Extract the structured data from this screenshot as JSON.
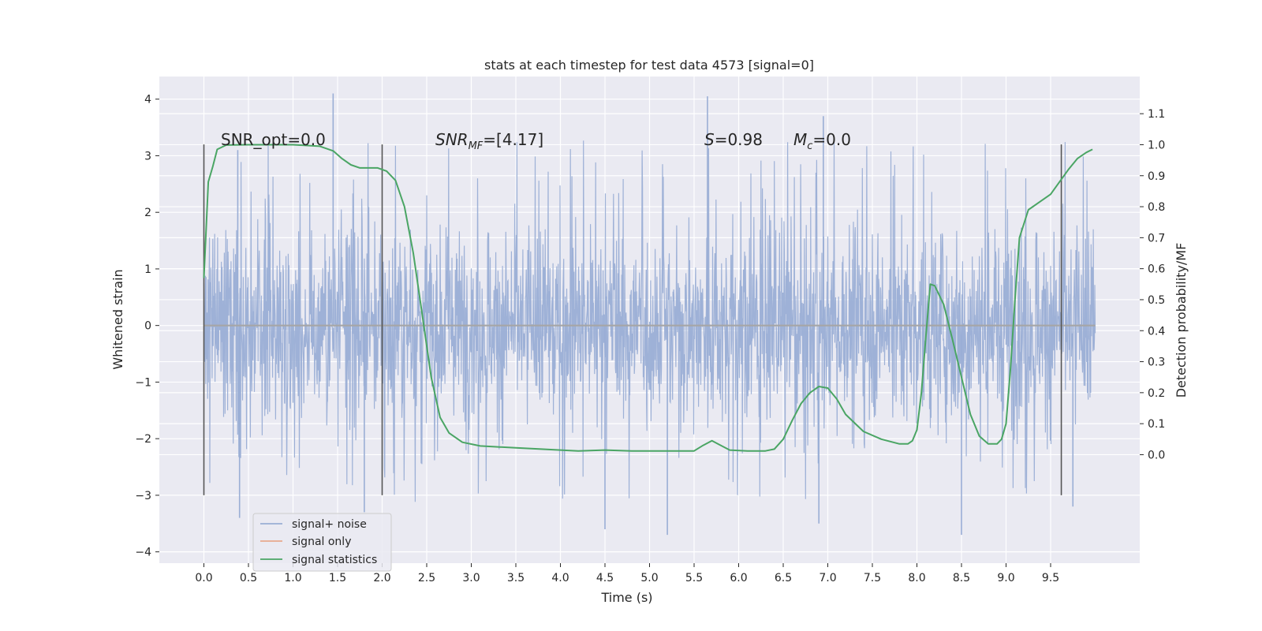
{
  "chart_data": {
    "type": "line",
    "title": "stats at each timestep for test data 4573 [signal=0]",
    "xlabel": "Time (s)",
    "ylabel": "Whitened strain",
    "ylabel_right": "Detection probability/MF",
    "xlim": [
      -0.5,
      10.5
    ],
    "ylim": [
      -4.2,
      4.4
    ],
    "ylim_right": [
      -0.35,
      1.22
    ],
    "x_ticks": [
      "0.0",
      "0.5",
      "1.0",
      "1.5",
      "2.0",
      "2.5",
      "3.0",
      "3.5",
      "4.0",
      "4.5",
      "5.0",
      "5.5",
      "6.0",
      "6.5",
      "7.0",
      "7.5",
      "8.0",
      "8.5",
      "9.0",
      "9.5"
    ],
    "y_ticks": [
      "4",
      "3",
      "2",
      "1",
      "0",
      "−1",
      "−2",
      "−3",
      "−4"
    ],
    "y_right_ticks": [
      "1.1",
      "1.0",
      "0.9",
      "0.8",
      "0.7",
      "0.6",
      "0.5",
      "0.4",
      "0.3",
      "0.2",
      "0.1",
      "0.0"
    ],
    "grid": true,
    "legend_position": "lower-left",
    "annotations": [
      {
        "text": "SNR_opt=0.0"
      },
      {
        "text_italic": "SNR",
        "sub": "MF",
        "text_rest": "=[4.17]"
      },
      {
        "text_italic": "S",
        "text_rest": "=0.98"
      },
      {
        "text_italic": "M",
        "sub": "c",
        "text_rest": "=0.0"
      }
    ],
    "vlines": [
      0.0,
      2.0,
      9.62
    ],
    "vline_range": [
      -3.0,
      3.2
    ],
    "series": [
      {
        "name": "signal+ noise",
        "axis": "left",
        "color": "#9aaed5",
        "x_range": [
          0.0,
          10.0
        ],
        "typical_envelope": [
          -1.9,
          2.0
        ],
        "peak_values": [
          {
            "x": 0.38,
            "y": 3.1
          },
          {
            "x": 0.4,
            "y": -3.4
          },
          {
            "x": 1.45,
            "y": 4.1
          },
          {
            "x": 1.8,
            "y": -3.3
          },
          {
            "x": 4.5,
            "y": -3.6
          },
          {
            "x": 5.2,
            "y": -3.7
          },
          {
            "x": 5.65,
            "y": 4.05
          },
          {
            "x": 6.95,
            "y": 3.7
          },
          {
            "x": 6.9,
            "y": -3.5
          },
          {
            "x": 8.5,
            "y": -3.7
          },
          {
            "x": 9.75,
            "y": -3.2
          }
        ]
      },
      {
        "name": "signal only",
        "axis": "left",
        "color": "#e8a98e",
        "x": [
          0.0,
          10.0
        ],
        "y": [
          0.0,
          0.0
        ]
      },
      {
        "name": "signal statistics",
        "axis": "right",
        "color": "#4aa564",
        "x": [
          0.0,
          0.05,
          0.1,
          0.15,
          0.25,
          0.5,
          1.0,
          1.3,
          1.45,
          1.55,
          1.65,
          1.75,
          1.85,
          1.95,
          2.05,
          2.15,
          2.25,
          2.35,
          2.45,
          2.55,
          2.65,
          2.75,
          2.9,
          3.1,
          3.5,
          4.0,
          4.2,
          4.5,
          4.8,
          5.2,
          5.5,
          5.6,
          5.7,
          5.8,
          5.9,
          6.1,
          6.3,
          6.4,
          6.5,
          6.6,
          6.7,
          6.8,
          6.9,
          7.0,
          7.1,
          7.2,
          7.4,
          7.6,
          7.8,
          7.9,
          7.95,
          8.0,
          8.05,
          8.1,
          8.15,
          8.2,
          8.3,
          8.4,
          8.5,
          8.6,
          8.7,
          8.8,
          8.9,
          8.95,
          9.0,
          9.05,
          9.1,
          9.15,
          9.25,
          9.4,
          9.5,
          9.6,
          9.7,
          9.8,
          9.9,
          9.97
        ],
        "y": [
          0.57,
          0.88,
          0.93,
          0.985,
          0.999,
          1.0,
          1.0,
          0.995,
          0.98,
          0.955,
          0.935,
          0.925,
          0.925,
          0.925,
          0.915,
          0.885,
          0.8,
          0.65,
          0.45,
          0.25,
          0.12,
          0.07,
          0.04,
          0.028,
          0.022,
          0.015,
          0.012,
          0.015,
          0.012,
          0.012,
          0.012,
          0.03,
          0.045,
          0.03,
          0.015,
          0.012,
          0.012,
          0.018,
          0.05,
          0.11,
          0.165,
          0.2,
          0.22,
          0.215,
          0.18,
          0.13,
          0.075,
          0.05,
          0.035,
          0.035,
          0.045,
          0.08,
          0.2,
          0.38,
          0.55,
          0.545,
          0.485,
          0.37,
          0.25,
          0.13,
          0.06,
          0.035,
          0.035,
          0.05,
          0.1,
          0.28,
          0.5,
          0.7,
          0.79,
          0.82,
          0.84,
          0.88,
          0.92,
          0.955,
          0.975,
          0.985
        ]
      }
    ]
  }
}
